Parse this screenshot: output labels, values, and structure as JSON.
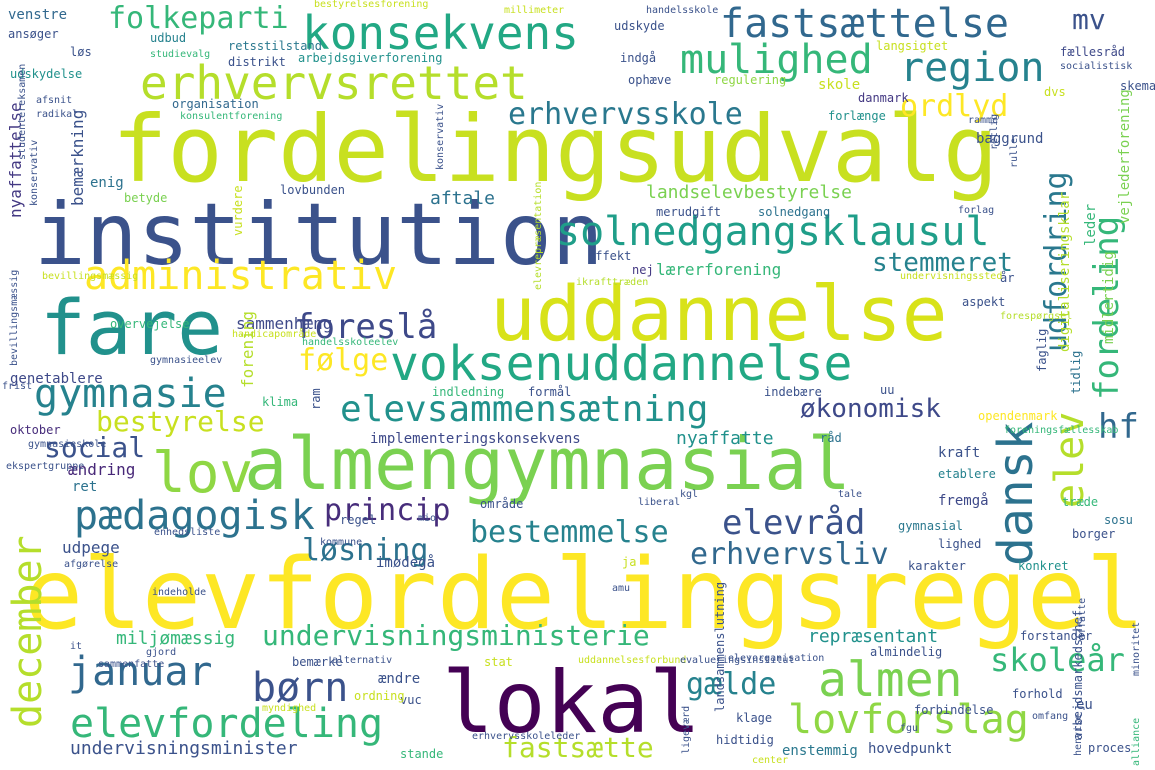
{
  "cloud": {
    "words": [
      {
        "text": "fordelingsudvalg",
        "color": "#c8e020"
      },
      {
        "text": "elevfordelingsregel",
        "color": "#fde725"
      },
      {
        "text": "institution",
        "color": "#3b528b"
      },
      {
        "text": "uddannelse",
        "color": "#d8e219"
      },
      {
        "text": "fare",
        "color": "#21918c"
      },
      {
        "text": "almengymnasial",
        "color": "#7ad151"
      },
      {
        "text": "lokal",
        "color": "#440154"
      },
      {
        "text": "voksenuddannelse",
        "color": "#22a884"
      },
      {
        "text": "erhvervsrettet",
        "color": "#b5de2b"
      },
      {
        "text": "konsekvens",
        "color": "#22a884"
      },
      {
        "text": "fastsættelse",
        "color": "#31688e"
      },
      {
        "text": "solnedgangsklausul",
        "color": "#1f9e89"
      },
      {
        "text": "lov",
        "color": "#8fd744"
      },
      {
        "text": "mulighed",
        "color": "#35b779"
      },
      {
        "text": "region",
        "color": "#26828e"
      },
      {
        "text": "administrativ",
        "color": "#fde725"
      },
      {
        "text": "elevsammensætning",
        "color": "#21918c"
      },
      {
        "text": "gymnasie",
        "color": "#26828e"
      },
      {
        "text": "pædagogisk",
        "color": "#2c728e"
      },
      {
        "text": "almen",
        "color": "#7ad151"
      },
      {
        "text": "lovforslag",
        "color": "#8fd744"
      },
      {
        "text": "elevfordeling",
        "color": "#35b779"
      },
      {
        "text": "januar",
        "color": "#31688e"
      },
      {
        "text": "børn",
        "color": "#3b528b"
      },
      {
        "text": "undervisningsministerie",
        "color": "#35b779"
      },
      {
        "text": "fastsætte",
        "color": "#b5de2b"
      },
      {
        "text": "foreslå",
        "color": "#3e4989"
      },
      {
        "text": "erhvervsskole",
        "color": "#2a788e"
      },
      {
        "text": "folkeparti",
        "color": "#35b779"
      },
      {
        "text": "ordlyd",
        "color": "#fde725"
      },
      {
        "text": "stemmeret",
        "color": "#26828e"
      },
      {
        "text": "elevråd",
        "color": "#3b528b"
      },
      {
        "text": "bestemmelse",
        "color": "#26828e"
      },
      {
        "text": "erhvervsliv",
        "color": "#31688e"
      },
      {
        "text": "princip",
        "color": "#472d7b"
      },
      {
        "text": "løsning",
        "color": "#2c728e"
      },
      {
        "text": "bestyrelse",
        "color": "#c8e020"
      },
      {
        "text": "social",
        "color": "#3b528b"
      },
      {
        "text": "følge",
        "color": "#fde725"
      },
      {
        "text": "økonomisk",
        "color": "#3e4989"
      },
      {
        "text": "hf",
        "color": "#31688e"
      },
      {
        "text": "skoleår",
        "color": "#35b779"
      },
      {
        "text": "gælde",
        "color": "#26828e"
      },
      {
        "text": "mv",
        "color": "#3b528b"
      },
      {
        "text": "december",
        "color": "#b5de2b"
      },
      {
        "text": "dansk",
        "color": "#2c728e"
      },
      {
        "text": "elev",
        "color": "#b5de2b"
      },
      {
        "text": "fordeling",
        "color": "#35b779"
      },
      {
        "text": "udfordring",
        "color": "#2a788e"
      },
      {
        "text": "undervisningsminister",
        "color": "#3b528b"
      },
      {
        "text": "miljømæssig",
        "color": "#35b779"
      },
      {
        "text": "repræsentant",
        "color": "#21918c"
      },
      {
        "text": "implementeringskonsekvens",
        "color": "#3e4989"
      },
      {
        "text": "nyaffatte",
        "color": "#21918c"
      },
      {
        "text": "landselevbestyrelse",
        "color": "#7ad151"
      },
      {
        "text": "sammenhæng",
        "color": "#3e4989"
      },
      {
        "text": "lærerforening",
        "color": "#35b779"
      },
      {
        "text": "aftale",
        "color": "#2c728e"
      },
      {
        "text": "nyaffattelse",
        "color": "#443983"
      },
      {
        "text": "bemærkning",
        "color": "#3b528b"
      },
      {
        "text": "enig",
        "color": "#2c728e"
      },
      {
        "text": "betyde",
        "color": "#7ad151"
      },
      {
        "text": "genetablere",
        "color": "#3e4989"
      },
      {
        "text": "ændring",
        "color": "#482878"
      },
      {
        "text": "udpege",
        "color": "#3b528b"
      },
      {
        "text": "ret",
        "color": "#2c728e"
      },
      {
        "text": "oktober",
        "color": "#472d7b"
      },
      {
        "text": "klima",
        "color": "#35b779"
      },
      {
        "text": "forening",
        "color": "#b5de2b"
      },
      {
        "text": "venstre",
        "color": "#31688e"
      },
      {
        "text": "ansøger",
        "color": "#3b528b"
      },
      {
        "text": "udskydelse",
        "color": "#21918c"
      },
      {
        "text": "løs",
        "color": "#3b528b"
      },
      {
        "text": "udbud",
        "color": "#26828e"
      },
      {
        "text": "retsstilstand",
        "color": "#2a788e"
      },
      {
        "text": "distrikt",
        "color": "#3b528b"
      },
      {
        "text": "arbejdsgiverforening",
        "color": "#21918c"
      },
      {
        "text": "udskyde",
        "color": "#3b528b"
      },
      {
        "text": "indgå",
        "color": "#3b528b"
      },
      {
        "text": "ophæve",
        "color": "#3b528b"
      },
      {
        "text": "regulering",
        "color": "#8fd744"
      },
      {
        "text": "skole",
        "color": "#c8e020"
      },
      {
        "text": "danmark",
        "color": "#443983"
      },
      {
        "text": "forlænge",
        "color": "#21918c"
      },
      {
        "text": "baggrund",
        "color": "#3b528b"
      },
      {
        "text": "organisation",
        "color": "#31688e"
      },
      {
        "text": "langsigtet",
        "color": "#c8e020"
      },
      {
        "text": "fællesråd",
        "color": "#3e4989"
      },
      {
        "text": "dvs",
        "color": "#c8e020"
      },
      {
        "text": "skema",
        "color": "#3b528b"
      },
      {
        "text": "vejlederforening",
        "color": "#7ad151"
      },
      {
        "text": "leder",
        "color": "#35b779"
      },
      {
        "text": "midlertidig",
        "color": "#7ad151"
      },
      {
        "text": "digitaliseringsklar",
        "color": "#b5de2b"
      },
      {
        "text": "faglig",
        "color": "#3b528b"
      },
      {
        "text": "tidlig",
        "color": "#2c728e"
      },
      {
        "text": "år",
        "color": "#3b528b"
      },
      {
        "text": "aspekt",
        "color": "#3b528b"
      },
      {
        "text": "merudgift",
        "color": "#3b528b"
      },
      {
        "text": "solnedgang",
        "color": "#2c728e"
      },
      {
        "text": "effekt",
        "color": "#3b528b"
      },
      {
        "text": "nej",
        "color": "#443983"
      },
      {
        "text": "indebære",
        "color": "#3b528b"
      },
      {
        "text": "uu",
        "color": "#3b528b"
      },
      {
        "text": "formål",
        "color": "#3b528b"
      },
      {
        "text": "indledning",
        "color": "#35b779"
      },
      {
        "text": "opendenmark",
        "color": "#fde725"
      },
      {
        "text": "råd",
        "color": "#2c728e"
      },
      {
        "text": "kraft",
        "color": "#3b528b"
      },
      {
        "text": "etablere",
        "color": "#26828e"
      },
      {
        "text": "fremgå",
        "color": "#3e4989"
      },
      {
        "text": "træde",
        "color": "#35b779"
      },
      {
        "text": "sosu",
        "color": "#2c728e"
      },
      {
        "text": "borger",
        "color": "#3b528b"
      },
      {
        "text": "lighed",
        "color": "#3b528b"
      },
      {
        "text": "gymnasial",
        "color": "#2a788e"
      },
      {
        "text": "konkret",
        "color": "#21918c"
      },
      {
        "text": "karakter",
        "color": "#3b528b"
      },
      {
        "text": "regel",
        "color": "#3b528b"
      },
      {
        "text": "område",
        "color": "#3b528b"
      },
      {
        "text": "imødegå",
        "color": "#3b528b"
      },
      {
        "text": "ja",
        "color": "#c8e020"
      },
      {
        "text": "forstander",
        "color": "#3b528b"
      },
      {
        "text": "almindelig",
        "color": "#3b528b"
      },
      {
        "text": "forhold",
        "color": "#3b528b"
      },
      {
        "text": "eu",
        "color": "#3b528b"
      },
      {
        "text": "forbindelse",
        "color": "#3b528b"
      },
      {
        "text": "klage",
        "color": "#3b528b"
      },
      {
        "text": "hidtidig",
        "color": "#3b528b"
      },
      {
        "text": "enstemmig",
        "color": "#2a788e"
      },
      {
        "text": "hovedpunkt",
        "color": "#3b528b"
      },
      {
        "text": "stande",
        "color": "#35b779"
      },
      {
        "text": "proces",
        "color": "#3b528b"
      },
      {
        "text": "vuc",
        "color": "#3b528b"
      },
      {
        "text": "ændre",
        "color": "#3b528b"
      },
      {
        "text": "bemærke",
        "color": "#3b528b"
      },
      {
        "text": "ordning",
        "color": "#c8e020"
      },
      {
        "text": "stat",
        "color": "#c8e020"
      },
      {
        "text": "sammenfatte",
        "color": "#3b528b"
      },
      {
        "text": "overvejelse",
        "color": "#35b779"
      },
      {
        "text": "handicapområde",
        "color": "#c8e020"
      },
      {
        "text": "handelsskoleelev",
        "color": "#35b779"
      },
      {
        "text": "ikrafttræden",
        "color": "#b5de2b"
      },
      {
        "text": "undervisningssted",
        "color": "#c8e020"
      },
      {
        "text": "forespørgsel",
        "color": "#b5de2b"
      },
      {
        "text": "forlag",
        "color": "#3b528b"
      },
      {
        "text": "rulle",
        "color": "#3b528b"
      },
      {
        "text": "ramme",
        "color": "#3b528b"
      },
      {
        "text": "retlig",
        "color": "#3b528b"
      },
      {
        "text": "rimelig",
        "color": "#3b528b"
      },
      {
        "text": "socialistisk",
        "color": "#3b528b"
      },
      {
        "text": "handelsskole",
        "color": "#3b528b"
      },
      {
        "text": "millimeter",
        "color": "#c8e020"
      },
      {
        "text": "bestyrelsesforening",
        "color": "#c8e020"
      },
      {
        "text": "studievalg",
        "color": "#35b779"
      },
      {
        "text": "konsulentforening",
        "color": "#35b779"
      },
      {
        "text": "afsnit",
        "color": "#3b528b"
      },
      {
        "text": "radikal",
        "color": "#3b528b"
      },
      {
        "text": "studentereksamen",
        "color": "#3b528b"
      },
      {
        "text": "konservativ",
        "color": "#3b528b"
      },
      {
        "text": "lovbunden",
        "color": "#3b528b"
      },
      {
        "text": "vurdere",
        "color": "#c8e020"
      },
      {
        "text": "elevrepræsentation",
        "color": "#3b528b"
      },
      {
        "text": "bevillingsmæssig",
        "color": "#b5de2b"
      },
      {
        "text": "gymnasieelev",
        "color": "#3b528b"
      },
      {
        "text": "frist",
        "color": "#c8e020"
      },
      {
        "text": "ram",
        "color": "#3b528b"
      },
      {
        "text": "kgl",
        "color": "#3b528b"
      },
      {
        "text": "tale",
        "color": "#3b528b"
      },
      {
        "text": "foreningsfællesskab",
        "color": "#3b528b"
      },
      {
        "text": "gymnasieskole",
        "color": "#3b528b"
      },
      {
        "text": "ekspertgruppe",
        "color": "#35b779"
      },
      {
        "text": "enhedsliste",
        "color": "#3b528b"
      },
      {
        "text": "mio",
        "color": "#3b528b"
      },
      {
        "text": "kommune",
        "color": "#3b528b"
      },
      {
        "text": "liberal",
        "color": "#3b528b"
      },
      {
        "text": "afgørelse",
        "color": "#3b528b"
      },
      {
        "text": "indeholde",
        "color": "#3b528b"
      },
      {
        "text": "amu",
        "color": "#3b528b"
      },
      {
        "text": "it",
        "color": "#3b528b"
      },
      {
        "text": "gjord",
        "color": "#3b528b"
      },
      {
        "text": "alternativ",
        "color": "#3b528b"
      },
      {
        "text": "uddannelsesforbund",
        "color": "#3b528b"
      },
      {
        "text": "evalueringsinstitut",
        "color": "#3b528b"
      },
      {
        "text": "elevorganisation",
        "color": "#c8e020"
      },
      {
        "text": "myndighed",
        "color": "#3b528b"
      },
      {
        "text": "erhvervsskoleleder",
        "color": "#3b528b"
      },
      {
        "text": "ligeværd",
        "color": "#c8e020"
      },
      {
        "text": "fgu",
        "color": "#3b528b"
      },
      {
        "text": "center",
        "color": "#3b528b"
      },
      {
        "text": "omfang",
        "color": "#3b528b"
      },
      {
        "text": "affatte",
        "color": "#c8e020"
      },
      {
        "text": "minoritet",
        "color": "#3b528b"
      },
      {
        "text": "alliance",
        "color": "#3b528b"
      },
      {
        "text": "arbejdsmarkedschef",
        "color": "#3b528b"
      },
      {
        "text": "landsammenslutning",
        "color": "#35b779"
      },
      {
        "text": "henvise",
        "color": "#3b528b"
      },
      {
        "text": "dut",
        "color": "#3b528b"
      },
      {
        "text": "ale",
        "color": "#3b528b"
      },
      {
        "text": "bestyrelsesforening",
        "color": "#c8e020"
      }
    ]
  }
}
